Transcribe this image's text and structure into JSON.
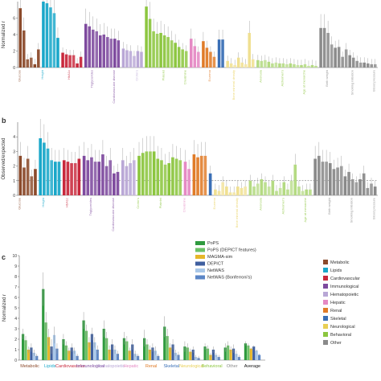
{
  "panel_labels": {
    "b": "b",
    "c": "c"
  },
  "colors": {
    "Metabolic": "#8b4a2b",
    "Lipids": "#19a7c9",
    "Cardiovascular": "#c8283c",
    "Immunological": "#7e4a9e",
    "Hematopoietic": "#b9a7d6",
    "Hepatic": "#e58ac4",
    "Renal": "#e07b27",
    "Skeletal": "#3a6fb6",
    "Neurological": "#e8cf55",
    "Behavioral": "#8cc63f",
    "Other": "#8a8a8a",
    "PoPS": "#2f9a3e",
    "PoPS (DEPICT features)": "#6cc167",
    "MAGMA-sim": "#e6b72a",
    "DEPICT": "#3f5f9f",
    "NetWAS": "#a9c7e8",
    "NetWAS (Bonferroni's)": "#5b86c6"
  },
  "chart_data": [
    {
      "panel": "a",
      "type": "bar",
      "xlabel": "",
      "ylabel": "Normalized r",
      "ylim": [
        0,
        8
      ],
      "yticks": [
        0,
        2,
        4,
        6
      ],
      "grid": false,
      "visible_xtick_labels": [
        "Glucose",
        "Height",
        "HbA1c",
        "Triglycerides",
        "Cardiovascular disease",
        "Crohn's",
        "Platelet",
        "Creatinine",
        "Eczema",
        "Bone mineral density",
        "Anorexia",
        "Alzheimer's",
        "Age at menarche",
        "Birth weight",
        "Smoking initiation",
        "Blood pressure"
      ],
      "groups": [
        {
          "category": "Metabolic",
          "values": [
            7.2,
            4.5,
            1.0,
            1.2,
            0.4,
            2.2
          ]
        },
        {
          "category": "Lipids",
          "values": [
            8.0,
            7.8,
            7.3,
            6.6,
            3.6
          ]
        },
        {
          "category": "Cardiovascular",
          "values": [
            1.8,
            1.6,
            1.5,
            1.5,
            0.5,
            1.3
          ]
        },
        {
          "category": "Immunological",
          "values": [
            5.3,
            5.0,
            4.6,
            4.4,
            3.9,
            4.0,
            3.7,
            3.5,
            3.5,
            3.3
          ]
        },
        {
          "category": "Hematopoietic",
          "values": [
            2.3,
            2.1,
            2.0,
            1.4,
            2.0,
            1.9
          ]
        },
        {
          "category": "Behavioral",
          "values": [
            7.4,
            5.9,
            4.4,
            4.1,
            4.2,
            3.9,
            3.7,
            3.3,
            3.0,
            2.5,
            2.2,
            2.0
          ]
        },
        {
          "category": "Hepatic",
          "values": [
            3.5,
            2.6,
            1.9
          ]
        },
        {
          "category": "Renal",
          "values": [
            3.2,
            2.4,
            1.9,
            1.3
          ]
        },
        {
          "category": "Skeletal",
          "values": [
            3.4,
            3.4
          ]
        },
        {
          "category": "Neurological",
          "values": [
            0.8,
            0.5,
            0.3,
            1.2,
            0.6,
            0.4,
            4.2,
            1.0
          ]
        },
        {
          "category": "Behavioral",
          "values": [
            0.9,
            0.8,
            0.9,
            0.7,
            0.5,
            0.6,
            0.5,
            0.5,
            0.4,
            0.5,
            0.4,
            0.3,
            0.3,
            0.4,
            0.2,
            0.3,
            0.2
          ]
        },
        {
          "category": "Other",
          "values": [
            4.8,
            4.8,
            4.2,
            2.8,
            2.4,
            2.5,
            1.3,
            2.2,
            1.5,
            1.2,
            0.8,
            0.6,
            0.6,
            0.5,
            0.4,
            0.4
          ]
        }
      ]
    },
    {
      "panel": "b",
      "type": "bar",
      "xlabel": "",
      "ylabel": "Observed/expected",
      "ylim": [
        0,
        5
      ],
      "yticks": [
        0,
        1,
        2,
        3,
        4
      ],
      "reference_line": 1,
      "grid": false,
      "visible_xtick_labels": [
        "Glucose",
        "Height",
        "HbA1c",
        "Triglycerides",
        "Cardiovascular disease",
        "Crohn's",
        "Platelet",
        "Creatinine",
        "Eczema",
        "Bone mineral density",
        "Anorexia",
        "Alzheimer's",
        "Age at menarche",
        "Birth weight",
        "Smoking initiation",
        "Blood pressure"
      ],
      "groups": [
        {
          "category": "Metabolic",
          "values": [
            2.7,
            1.9,
            2.5,
            1.3,
            1.8
          ]
        },
        {
          "category": "Lipids",
          "values": [
            3.9,
            3.6,
            3.2,
            2.4,
            2.3,
            2.3
          ]
        },
        {
          "category": "Cardiovascular",
          "values": [
            2.4,
            2.3,
            2.2,
            2.2,
            2.5
          ]
        },
        {
          "category": "Immunological",
          "values": [
            2.7,
            2.4,
            2.6,
            2.3,
            2.3,
            2.8,
            2.0,
            2.4,
            1.5,
            1.6
          ]
        },
        {
          "category": "Hematopoietic",
          "values": [
            2.4,
            2.0,
            2.2,
            2.4
          ]
        },
        {
          "category": "Behavioral",
          "values": [
            2.7,
            2.9,
            3.0,
            3.0,
            3.0,
            2.5,
            2.4,
            2.1,
            2.2,
            2.6,
            2.5,
            2.4
          ]
        },
        {
          "category": "Hepatic",
          "values": [
            2.3,
            1.8
          ]
        },
        {
          "category": "Renal",
          "values": [
            2.8,
            2.6,
            2.7,
            2.7
          ]
        },
        {
          "category": "Skeletal",
          "values": [
            1.5
          ]
        },
        {
          "category": "Neurological",
          "values": [
            0.4,
            0.3,
            0.9,
            0.6,
            0.2,
            0.2,
            0.6,
            0.5,
            0.6
          ]
        },
        {
          "category": "Behavioral",
          "values": [
            1.0,
            0.6,
            0.8,
            1.1,
            0.9,
            0.6,
            1.0,
            0.3,
            0.5,
            0.9,
            0.4,
            1.0,
            2.1,
            0.6,
            0.3,
            0.4,
            0.4
          ]
        },
        {
          "category": "Other",
          "values": [
            2.5,
            2.7,
            2.3,
            2.3,
            2.2,
            1.8,
            1.9,
            2.0,
            1.3,
            1.6,
            1.1,
            0.9,
            1.1,
            1.5,
            0.5,
            0.8,
            0.6
          ]
        }
      ]
    },
    {
      "panel": "c",
      "type": "bar",
      "xlabel": "",
      "ylabel": "Normalized r",
      "ylim": [
        0,
        10
      ],
      "yticks": [
        0,
        1,
        2,
        3,
        4,
        5,
        6,
        7,
        8,
        9,
        10
      ],
      "grid": false,
      "legend_position": "top-right",
      "categories": [
        "Metabolic",
        "Lipids",
        "Cardiovascular",
        "Immunological",
        "Hematopoietic",
        "Hepatic",
        "Renal",
        "Skeletal",
        "Neurological",
        "Behavioral",
        "Other",
        "Average"
      ],
      "category_labels": [
        "Metabolic",
        "Lipids",
        "Cardiovascular",
        "Immunological",
        "Hematopoietic",
        "Hepatic",
        "Renal",
        "Skeletal",
        "Neurological",
        "Behavioral",
        "Other",
        "Average"
      ],
      "series": [
        {
          "name": "PoPS",
          "values": [
            2.5,
            6.8,
            2.0,
            3.8,
            3.0,
            2.1,
            2.1,
            3.2,
            1.3,
            1.3,
            1.2,
            1.6
          ]
        },
        {
          "name": "PoPS (DEPICT features)",
          "values": [
            1.9,
            3.6,
            1.4,
            2.8,
            2.1,
            1.8,
            1.5,
            2.3,
            1.2,
            1.1,
            1.4,
            1.4
          ]
        },
        {
          "name": "MAGMA-sim",
          "values": [
            1.0,
            2.2,
            0.9,
            1.7,
            1.0,
            0.9,
            1.0,
            1.2,
            0.8,
            0.5,
            1.0,
            1.1
          ]
        },
        {
          "name": "DEPICT",
          "values": [
            1.2,
            1.3,
            1.2,
            2.5,
            1.5,
            1.5,
            1.2,
            1.5,
            1.0,
            1.0,
            1.1,
            1.3
          ]
        },
        {
          "name": "NetWAS",
          "values": [
            0.7,
            2.4,
            0.9,
            1.7,
            1.0,
            0.6,
            0.9,
            0.7,
            0.3,
            0.5,
            0.6,
            0.9
          ]
        },
        {
          "name": "NetWAS (Bonferroni's)",
          "values": [
            0.4,
            1.1,
            0.4,
            1.0,
            0.6,
            0.4,
            0.4,
            0.5,
            0.2,
            0.3,
            0.3,
            0.5
          ]
        }
      ],
      "errors": [
        [
          0.5,
          1.6,
          0.5,
          0.8,
          0.8,
          0.6,
          0.8,
          1.0,
          0.5,
          0.3,
          0.4,
          0.2
        ],
        [
          0.4,
          1.0,
          0.4,
          0.6,
          0.6,
          0.5,
          0.5,
          0.7,
          0.4,
          0.3,
          0.4,
          0.2
        ],
        [
          0.3,
          0.8,
          0.3,
          0.5,
          0.4,
          0.3,
          0.4,
          0.4,
          0.3,
          0.2,
          0.3,
          0.1
        ],
        [
          0.4,
          0.7,
          0.4,
          0.6,
          0.5,
          0.5,
          0.4,
          0.5,
          0.3,
          0.3,
          0.4,
          0.1
        ],
        [
          0.3,
          0.8,
          0.3,
          0.5,
          0.4,
          0.3,
          0.4,
          0.3,
          0.2,
          0.2,
          0.3,
          0.1
        ],
        [
          0.2,
          0.5,
          0.2,
          0.4,
          0.3,
          0.2,
          0.2,
          0.3,
          0.2,
          0.2,
          0.2,
          0.1
        ]
      ],
      "legend_entries": [
        "PoPS",
        "PoPS (DEPICT features)",
        "MAGMA-sim",
        "DEPICT",
        "NetWAS",
        "NetWAS (Bonferroni's)"
      ],
      "category_legend_entries": [
        "Metabolic",
        "Lipids",
        "Cardiovascular",
        "Immunological",
        "Hematopoietic",
        "Hepatic",
        "Renal",
        "Skeletal",
        "Neurological",
        "Behavioral",
        "Other"
      ]
    }
  ]
}
